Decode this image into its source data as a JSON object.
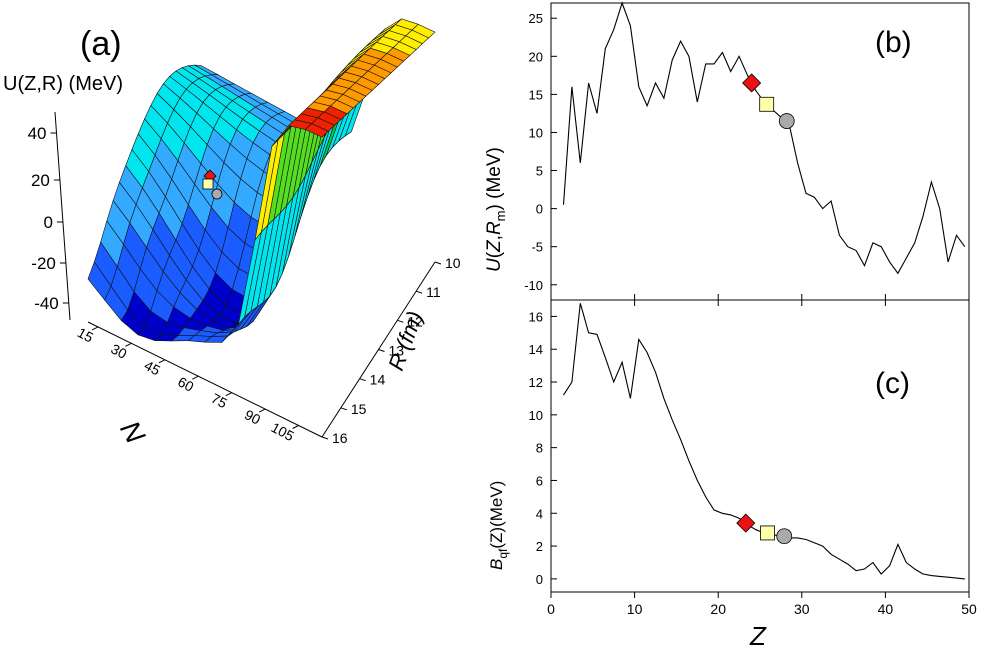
{
  "panel_a": {
    "label": "(a)",
    "zlabel": "U(Z,R)  (MeV)",
    "xlabel": "N",
    "ylabel": "R (fm)",
    "z_ticks": [
      "40",
      "20",
      "0",
      "-20",
      "-40"
    ],
    "n_ticks": [
      "15",
      "30",
      "45",
      "60",
      "75",
      "90",
      "105"
    ],
    "r_ticks": [
      "10",
      "11",
      "12",
      "13",
      "14",
      "15",
      "16"
    ],
    "colors": [
      "#0000cc",
      "#1a5cff",
      "#33aaff",
      "#00e5ee",
      "#00cc44",
      "#55dd22",
      "#ffee00",
      "#ff9900",
      "#ee2200"
    ]
  },
  "chart_data": [
    {
      "type": "line",
      "panel": "(b)",
      "ylabel": "U(Z,Rm) (MeV)",
      "xlim": [
        0,
        50
      ],
      "ylim": [
        -12,
        27
      ],
      "yticks": [
        -10,
        -5,
        0,
        5,
        10,
        15,
        20,
        25
      ],
      "x": [
        1.5,
        2.5,
        3.5,
        4.5,
        5.5,
        6.5,
        7.5,
        8.5,
        9.5,
        10.5,
        11.5,
        12.5,
        13.5,
        14.5,
        15.5,
        16.5,
        17.5,
        18.5,
        19.5,
        20.5,
        21.5,
        22.5,
        23.5,
        24.5,
        25.5,
        26.5,
        27.5,
        28.5,
        29.5,
        30.5,
        31.5,
        32.5,
        33.5,
        34.5,
        35.5,
        36.5,
        37.5,
        38.5,
        39.5,
        40.5,
        41.5,
        42.5,
        43.5,
        44.5,
        45.5,
        46.5,
        47.5,
        48.5,
        49.5
      ],
      "y": [
        0.5,
        16,
        6,
        16.5,
        12.5,
        21,
        23.5,
        27,
        24,
        16,
        13.5,
        16.5,
        14.5,
        19.5,
        22,
        20,
        14,
        19,
        19,
        20.5,
        18,
        20,
        17.5,
        15.5,
        14,
        13,
        12,
        11,
        6,
        2,
        1.5,
        0,
        1,
        -3.5,
        -5,
        -5.5,
        -7.5,
        -4.5,
        -5,
        -7,
        -8.5,
        -6.5,
        -4.5,
        -1,
        3.5,
        0,
        -7,
        -3.5,
        -5
      ]
    },
    {
      "type": "line",
      "panel": "(c)",
      "ylabel": "Bqf(Z)(MeV)",
      "xlabel": "Z",
      "xlim": [
        0,
        50
      ],
      "ylim": [
        -0.8,
        17
      ],
      "xticks": [
        0,
        10,
        20,
        30,
        40,
        50
      ],
      "yticks": [
        0,
        2,
        4,
        6,
        8,
        10,
        12,
        14,
        16
      ],
      "x": [
        1.5,
        2.5,
        3.5,
        4.5,
        5.5,
        6.5,
        7.5,
        8.5,
        9.5,
        10.5,
        11.5,
        12.5,
        13.5,
        14.5,
        15.5,
        16.5,
        17.5,
        18.5,
        19.5,
        20.5,
        21.5,
        22.5,
        23.5,
        24.5,
        25.5,
        26.5,
        27.5,
        28.5,
        29.5,
        30.5,
        31.5,
        32.5,
        33.5,
        34.5,
        35.5,
        36.5,
        37.5,
        38.5,
        39.5,
        40.5,
        41.5,
        42.5,
        43.5,
        44.5,
        45.5,
        46.5,
        47.5,
        48.5,
        49.5
      ],
      "y": [
        11.2,
        12.0,
        16.8,
        15.0,
        14.9,
        13.5,
        12.0,
        13.2,
        11.0,
        14.6,
        13.8,
        12.6,
        11.0,
        9.7,
        8.5,
        7.2,
        6.0,
        5.0,
        4.2,
        4.0,
        3.9,
        3.7,
        3.3,
        3.0,
        2.8,
        2.7,
        2.6,
        2.5,
        2.5,
        2.4,
        2.2,
        2.0,
        1.5,
        1.2,
        0.9,
        0.5,
        0.6,
        1.0,
        0.3,
        0.8,
        2.1,
        1.0,
        0.6,
        0.3,
        0.2,
        0.15,
        0.1,
        0.05,
        0.0
      ]
    }
  ],
  "markers": {
    "b": [
      {
        "shape": "diamond",
        "x": 24,
        "y": 16.5,
        "color": "#ee1111"
      },
      {
        "shape": "square",
        "x": 25.8,
        "y": 13.7,
        "color": "#ffffaa"
      },
      {
        "shape": "circle",
        "x": 28.2,
        "y": 11.5,
        "color": "#aaaaaa"
      }
    ],
    "c": [
      {
        "shape": "diamond",
        "x": 23.3,
        "y": 3.4,
        "color": "#ee1111"
      },
      {
        "shape": "square",
        "x": 25.9,
        "y": 2.8,
        "color": "#ffffaa"
      },
      {
        "shape": "circle",
        "x": 27.9,
        "y": 2.6,
        "color": "#aaaaaa"
      }
    ]
  }
}
